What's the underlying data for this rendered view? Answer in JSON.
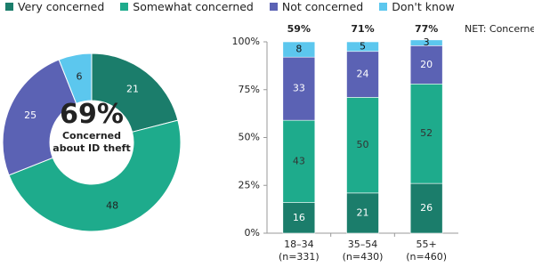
{
  "chart_data": [
    {
      "type": "donut",
      "values": [
        21,
        48,
        25,
        6
      ],
      "colors": [
        "#1b7d6b",
        "#1eab8c",
        "#5b62b4",
        "#5cc7ee"
      ],
      "label_colors": [
        "#ffffff",
        "#222222",
        "#ffffff",
        "#222222"
      ],
      "center_value": {
        "value": 69,
        "label": "69%"
      },
      "center_text": "Concerned about ID theft"
    },
    {
      "type": "stacked-bar",
      "categories": [
        "18–34\n(n=331)",
        "35–54\n(n=430)",
        "55+\n(n=460)"
      ],
      "series": [
        {
          "name": "Very concerned",
          "color": "#1b7d6b",
          "label_color": "#ffffff",
          "values": [
            16,
            21,
            26
          ]
        },
        {
          "name": "Somewhat concerned",
          "color": "#1eab8c",
          "label_color": "#333333",
          "values": [
            43,
            50,
            52
          ]
        },
        {
          "name": "Not concerned",
          "color": "#5b62b4",
          "label_color": "#ffffff",
          "values": [
            33,
            24,
            20
          ]
        },
        {
          "name": "Don't know",
          "color": "#5cc7ee",
          "label_color": "#111111",
          "values": [
            8,
            5,
            3
          ]
        }
      ],
      "ylim": [
        0,
        100
      ],
      "yticks": [
        {
          "value": 0,
          "label": "0%"
        },
        {
          "value": 25,
          "label": "25%"
        },
        {
          "value": 50,
          "label": "50%"
        },
        {
          "value": 75,
          "label": "75%"
        },
        {
          "value": 100,
          "label": "100%"
        }
      ],
      "grid": false,
      "net": {
        "label": "NET: Concerned",
        "values": [
          59,
          71,
          77
        ],
        "value_labels": [
          "59%",
          "71%",
          "77%"
        ]
      }
    }
  ]
}
